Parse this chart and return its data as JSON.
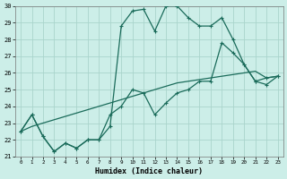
{
  "xlabel": "Humidex (Indice chaleur)",
  "background_color": "#cceee8",
  "grid_color": "#aad4cc",
  "line_color": "#1a6b5a",
  "xlim": [
    -0.5,
    23.5
  ],
  "ylim": [
    21,
    30
  ],
  "xtick_labels": [
    "0",
    "1",
    "2",
    "3",
    "4",
    "5",
    "6",
    "7",
    "8",
    "9",
    "10",
    "11",
    "12",
    "13",
    "14",
    "15",
    "16",
    "17",
    "18",
    "19",
    "20",
    "21",
    "22",
    "23"
  ],
  "ytick_labels": [
    "21",
    "22",
    "23",
    "24",
    "25",
    "26",
    "27",
    "28",
    "29",
    "30"
  ],
  "series1_x": [
    0,
    1,
    2,
    3,
    4,
    5,
    6,
    7,
    8,
    9,
    10,
    11,
    12,
    13,
    14,
    15,
    16,
    17,
    18,
    19,
    20,
    21,
    22,
    23
  ],
  "series1_y": [
    22.5,
    23.5,
    22.2,
    21.3,
    21.8,
    21.5,
    22.0,
    22.0,
    22.8,
    28.8,
    29.7,
    29.8,
    28.5,
    30.0,
    30.0,
    29.3,
    28.8,
    28.8,
    29.3,
    28.0,
    26.5,
    25.5,
    25.7,
    25.8
  ],
  "series2_x": [
    0,
    1,
    2,
    3,
    4,
    5,
    6,
    7,
    8,
    9,
    10,
    11,
    12,
    13,
    14,
    15,
    16,
    17,
    18,
    19,
    20,
    21,
    22,
    23
  ],
  "series2_y": [
    22.5,
    23.5,
    22.2,
    21.3,
    21.8,
    21.5,
    22.0,
    22.0,
    23.5,
    24.0,
    25.0,
    24.8,
    23.5,
    24.2,
    24.8,
    25.0,
    25.5,
    25.5,
    27.8,
    27.2,
    26.5,
    25.5,
    25.3,
    25.8
  ],
  "series3_x": [
    0,
    1,
    2,
    3,
    4,
    5,
    6,
    7,
    8,
    9,
    10,
    11,
    12,
    13,
    14,
    15,
    16,
    17,
    18,
    19,
    20,
    21,
    22,
    23
  ],
  "series3_y": [
    22.5,
    22.8,
    23.0,
    23.2,
    23.4,
    23.6,
    23.8,
    24.0,
    24.2,
    24.4,
    24.6,
    24.8,
    25.0,
    25.2,
    25.4,
    25.5,
    25.6,
    25.7,
    25.8,
    25.9,
    26.0,
    26.1,
    25.7,
    25.8
  ]
}
